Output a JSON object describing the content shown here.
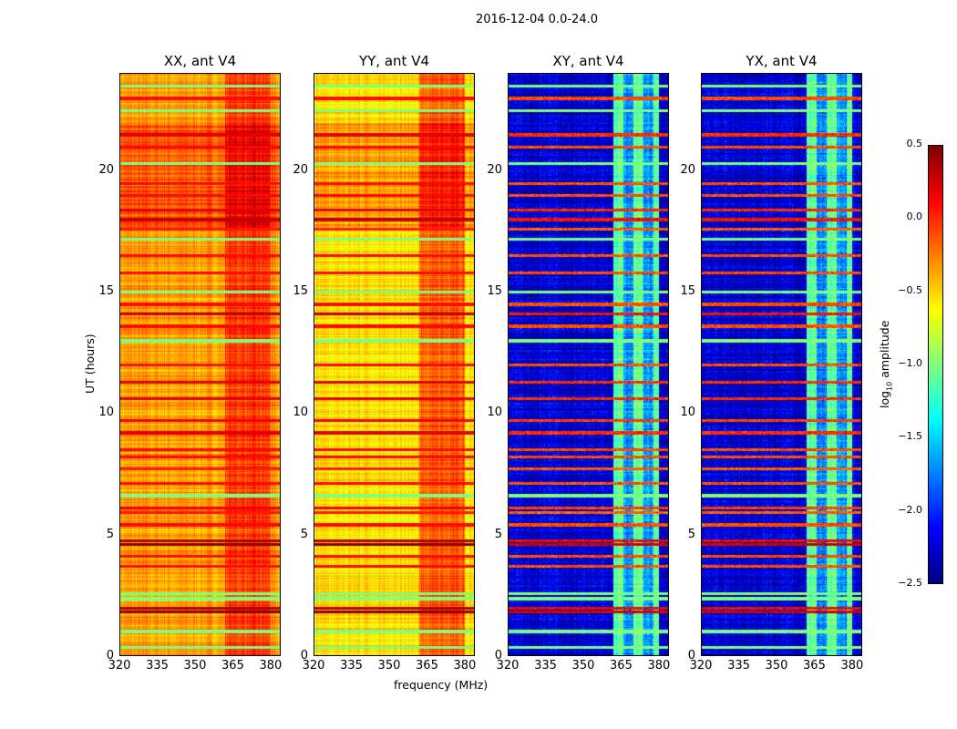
{
  "chart_data": {
    "type": "heatmap",
    "title": "2016-12-04 0.0-24.0",
    "xlabel": "frequency (MHz)",
    "ylabel": "UT (hours)",
    "xlim": [
      320,
      384
    ],
    "ylim": [
      0,
      24
    ],
    "xticks": [
      320,
      335,
      350,
      365,
      380
    ],
    "yticks": [
      0,
      5,
      10,
      15,
      20
    ],
    "colormap": "jet",
    "colorbar": {
      "label": "log10 amplitude",
      "label_main": "log",
      "label_sub": "10",
      "label_rest": " amplitude",
      "range": [
        -2.5,
        0.5
      ],
      "ticks": [
        "0.5",
        "0.0",
        "−0.5",
        "−1.0",
        "−1.5",
        "−2.0",
        "−2.5"
      ],
      "tick_values": [
        0.5,
        0.0,
        -0.5,
        -1.0,
        -1.5,
        -2.0,
        -2.5
      ]
    },
    "panels": [
      {
        "title": "XX, ant V4",
        "base_level": -0.35,
        "band_level": -0.05,
        "band_mhz": [
          362,
          380
        ]
      },
      {
        "title": "YY, ant V4",
        "base_level": -0.55,
        "band_level": -0.15,
        "band_mhz": [
          362,
          380
        ]
      },
      {
        "title": "XY, ant V4",
        "base_level": -2.25,
        "band_level": -1.1,
        "band_mhz": [
          362,
          380
        ]
      },
      {
        "title": "YX, ant V4",
        "base_level": -2.25,
        "band_level": -1.1,
        "band_mhz": [
          362,
          380
        ]
      }
    ],
    "rfi_lines_hours": [
      {
        "hour": 0.35,
        "level": -1.0
      },
      {
        "hour": 1.0,
        "level": -1.0
      },
      {
        "hour": 1.8,
        "level": 0.45
      },
      {
        "hour": 1.95,
        "level": 0.35
      },
      {
        "hour": 2.35,
        "level": -1.0
      },
      {
        "hour": 2.55,
        "level": -1.0
      },
      {
        "hour": 3.7,
        "level": 0.1
      },
      {
        "hour": 4.1,
        "level": 0.1
      },
      {
        "hour": 4.6,
        "level": 0.45
      },
      {
        "hour": 4.75,
        "level": 0.35
      },
      {
        "hour": 5.4,
        "level": 0.1
      },
      {
        "hour": 5.9,
        "level": 0.05
      },
      {
        "hour": 6.1,
        "level": 0.15
      },
      {
        "hour": 6.6,
        "level": -1.0
      },
      {
        "hour": 7.1,
        "level": 0.1
      },
      {
        "hour": 7.7,
        "level": 0.05
      },
      {
        "hour": 8.2,
        "level": 0.1
      },
      {
        "hour": 8.5,
        "level": 0.1
      },
      {
        "hour": 9.2,
        "level": 0.2
      },
      {
        "hour": 9.7,
        "level": 0.15
      },
      {
        "hour": 10.6,
        "level": 0.2
      },
      {
        "hour": 11.3,
        "level": 0.2
      },
      {
        "hour": 12.0,
        "level": 0.1
      },
      {
        "hour": 13.0,
        "level": -1.0
      },
      {
        "hour": 13.6,
        "level": 0.1
      },
      {
        "hour": 14.1,
        "level": 0.3
      },
      {
        "hour": 14.5,
        "level": 0.1
      },
      {
        "hour": 15.0,
        "level": -1.0
      },
      {
        "hour": 15.8,
        "level": 0.1
      },
      {
        "hour": 16.5,
        "level": 0.1
      },
      {
        "hour": 17.2,
        "level": -1.0
      },
      {
        "hour": 17.6,
        "level": 0.05
      },
      {
        "hour": 18.0,
        "level": 0.3
      },
      {
        "hour": 18.4,
        "level": 0.2
      },
      {
        "hour": 19.0,
        "level": 0.1
      },
      {
        "hour": 19.5,
        "level": 0.1
      },
      {
        "hour": 20.3,
        "level": -1.0
      },
      {
        "hour": 21.0,
        "level": 0.1
      },
      {
        "hour": 21.5,
        "level": 0.2
      },
      {
        "hour": 22.5,
        "level": -1.0
      },
      {
        "hour": 23.0,
        "level": 0.1
      },
      {
        "hour": 23.5,
        "level": -1.0
      }
    ]
  }
}
